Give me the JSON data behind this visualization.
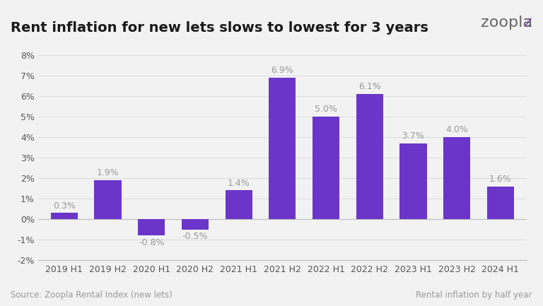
{
  "title": "Rent inflation for new lets slows to lowest for 3 years",
  "categories": [
    "2019 H1",
    "2019 H2",
    "2020 H1",
    "2020 H2",
    "2021 H1",
    "2021 H2",
    "2022 H1",
    "2022 H2",
    "2023 H1",
    "2023 H2",
    "2024 H1"
  ],
  "values": [
    0.3,
    1.9,
    -0.8,
    -0.5,
    1.4,
    6.9,
    5.0,
    6.1,
    3.7,
    4.0,
    1.6
  ],
  "bar_color": "#6B35C9",
  "background_color": "#F2F2F2",
  "plot_bg_color": "#F2F2F2",
  "ylim": [
    -2,
    8
  ],
  "yticks": [
    -2,
    -1,
    0,
    1,
    2,
    3,
    4,
    5,
    6,
    7,
    8
  ],
  "ytick_labels": [
    "-2%",
    "-1%",
    "0%",
    "1%",
    "2%",
    "3%",
    "4%",
    "5%",
    "6%",
    "7%",
    "8%"
  ],
  "label_color": "#999999",
  "source_text": "Source: Zoopla Rental Index (new lets)",
  "source_color": "#999999",
  "right_footer_text": "Rental inflation by half year",
  "right_footer_color": "#999999",
  "zoopla_text": "zoopla",
  "zoopla_color_z": "#8B44CC",
  "zoopla_color_rest": "#666666",
  "title_fontsize": 14,
  "label_fontsize": 9,
  "tick_fontsize": 9,
  "footer_fontsize": 8.5,
  "zoopla_fontsize": 16,
  "grid_color": "#DDDDDD",
  "spine_color": "#BBBBBB"
}
